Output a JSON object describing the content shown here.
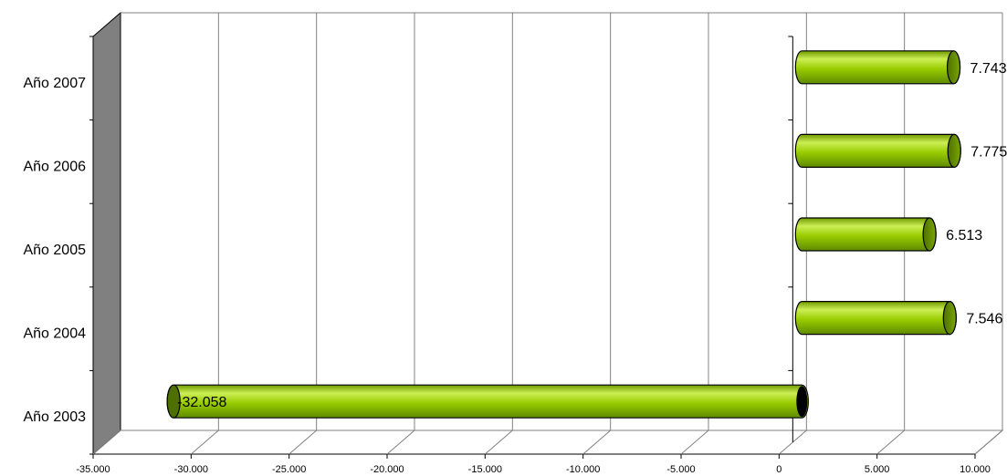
{
  "chart_data": {
    "type": "bar",
    "orientation": "horizontal",
    "style": "3d-cylinder",
    "categories": [
      "Año 2003",
      "Año 2004",
      "Año 2005",
      "Año 2006",
      "Año 2007"
    ],
    "values": [
      -32058,
      7546,
      6513,
      7775,
      7743
    ],
    "data_labels": [
      "-32.058",
      "7.546",
      "6.513",
      "7.775",
      "7.743"
    ],
    "xlim": [
      -35000,
      10000
    ],
    "x_ticks": [
      -35000,
      -30000,
      -25000,
      -20000,
      -15000,
      -10000,
      -5000,
      0,
      5000,
      10000
    ],
    "x_tick_labels": [
      "-35.000",
      "-30.000",
      "-25.000",
      "-20.000",
      "-15.000",
      "-10.000",
      "-5.000",
      "0",
      "5.000",
      "10.000"
    ],
    "grid": true,
    "legend": "none",
    "colors": {
      "bar_fill": "#99cc00",
      "bar_highlight": "#ccee55",
      "bar_shadow": "#5e8a00",
      "bar_end": "#4d7000",
      "wall": "#808080",
      "gridline": "#808080"
    }
  }
}
